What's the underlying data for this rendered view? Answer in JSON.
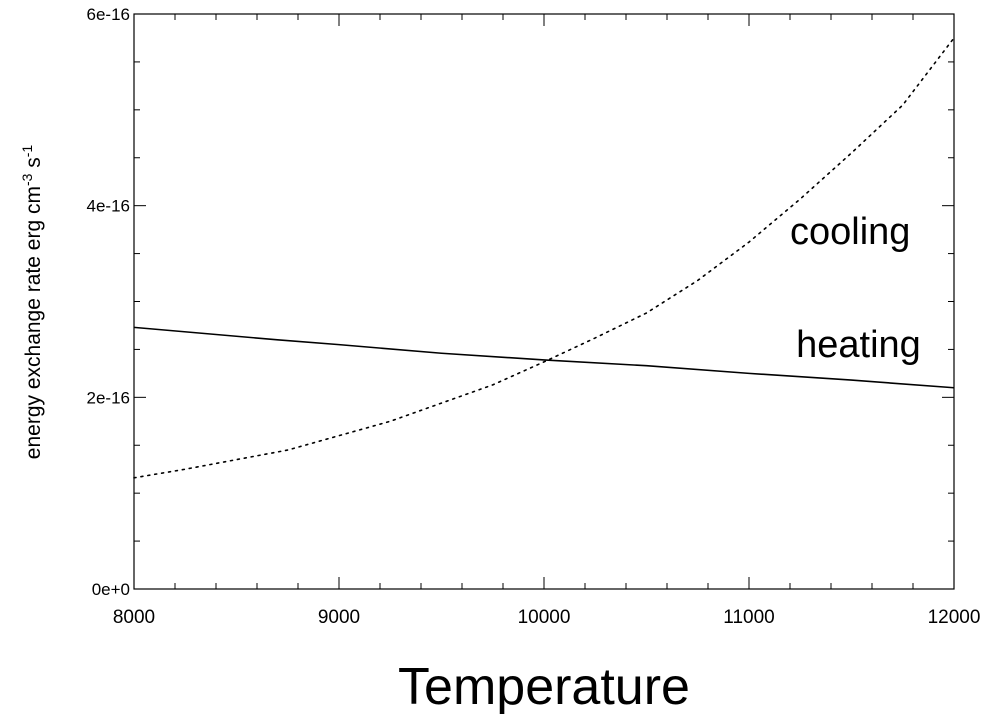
{
  "chart_data": {
    "type": "line",
    "title": "",
    "xlabel": "Temperature",
    "ylabel": {
      "base": "energy exchange rate erg cm",
      "sup1": "-3",
      "mid": " s",
      "sup2": "-1"
    },
    "xlim": [
      8000,
      12000
    ],
    "ylim": [
      0,
      6e-16
    ],
    "grid": false,
    "x_ticks": [
      {
        "value": 8000,
        "label": "8000"
      },
      {
        "value": 9000,
        "label": "9000"
      },
      {
        "value": 10000,
        "label": "10000"
      },
      {
        "value": 11000,
        "label": "11000"
      },
      {
        "value": 12000,
        "label": "12000"
      }
    ],
    "y_ticks": [
      {
        "value": 0,
        "label": "0e+0"
      },
      {
        "value": 2e-16,
        "label": "2e-16"
      },
      {
        "value": 4e-16,
        "label": "4e-16"
      },
      {
        "value": 6e-16,
        "label": "6e-16"
      }
    ],
    "series": [
      {
        "name": "heating",
        "style": "solid",
        "color": "#000000",
        "x": [
          8000,
          8700,
          9000,
          9500,
          10000,
          10500,
          11000,
          11500,
          12000
        ],
        "y": [
          2.73e-16,
          2.6e-16,
          2.55e-16,
          2.46e-16,
          2.39e-16,
          2.33e-16,
          2.25e-16,
          2.18e-16,
          2.1e-16
        ]
      },
      {
        "name": "cooling",
        "style": "dotted",
        "color": "#000000",
        "x": [
          8000,
          8250,
          8500,
          8750,
          9000,
          9250,
          9500,
          9750,
          10000,
          10250,
          10500,
          10750,
          11000,
          11250,
          11500,
          11750,
          12000
        ],
        "y": [
          1.16e-16,
          1.25e-16,
          1.35e-16,
          1.45e-16,
          1.6e-16,
          1.75e-16,
          1.94e-16,
          2.13e-16,
          2.37e-16,
          2.62e-16,
          2.88e-16,
          3.22e-16,
          3.62e-16,
          4.07e-16,
          4.55e-16,
          5.05e-16,
          5.75e-16
        ]
      }
    ],
    "annotations": [
      {
        "text": "cooling",
        "x": 11200,
        "y": 3.6e-16
      },
      {
        "text": "heating",
        "x": 11230,
        "y": 2.42e-16
      }
    ]
  }
}
